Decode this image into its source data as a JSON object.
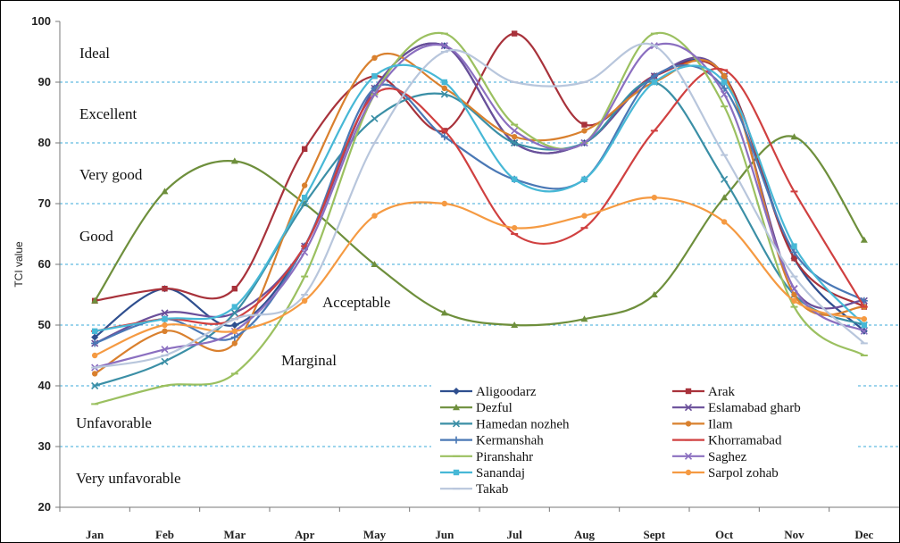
{
  "chart_data": {
    "type": "line",
    "ylabel": "TCI value",
    "xlabel": "",
    "ylim": [
      20,
      100
    ],
    "yticks": [
      20,
      30,
      40,
      50,
      60,
      70,
      80,
      90,
      100
    ],
    "categories": [
      "Jan",
      "Feb",
      "Mar",
      "Apr",
      "May",
      "Jun",
      "Jul",
      "Aug",
      "Sept",
      "Oct",
      "Nov",
      "Dec"
    ],
    "grid": "dashed horizontal at 30, 40, 50, 60, 70, 80, 90",
    "legend_placement": "bottom-right",
    "bands": [
      {
        "label": "Ideal",
        "value": 95
      },
      {
        "label": "Excellent",
        "value": 85
      },
      {
        "label": "Very good",
        "value": 75
      },
      {
        "label": "Good",
        "value": 65
      },
      {
        "label": "Acceptable",
        "value": 55
      },
      {
        "label": "Marginal",
        "value": 45
      },
      {
        "label": "Unfavorable",
        "value": 35
      },
      {
        "label": "Very unfavorable",
        "value": 25
      }
    ],
    "series": [
      {
        "name": "Aligoodarz",
        "color": "#2f4f8f",
        "marker": "diamond",
        "values": [
          48,
          56,
          50,
          63,
          89,
          96,
          80,
          80,
          91,
          91,
          61,
          49
        ]
      },
      {
        "name": "Arak",
        "color": "#a8323b",
        "marker": "square",
        "values": [
          54,
          56,
          56,
          79,
          91,
          82,
          98,
          83,
          91,
          91,
          61,
          53
        ]
      },
      {
        "name": "Dezful",
        "color": "#6e8f3c",
        "marker": "triangle",
        "values": [
          54,
          72,
          77,
          70,
          60,
          52,
          50,
          51,
          55,
          71,
          81,
          64
        ]
      },
      {
        "name": "Eslamabad gharb",
        "color": "#6a4f9a",
        "marker": "cross",
        "values": [
          47,
          52,
          52,
          63,
          89,
          96,
          80,
          80,
          91,
          91,
          56,
          54
        ]
      },
      {
        "name": "Hamedan nozheh",
        "color": "#3b8fa6",
        "marker": "cross",
        "values": [
          40,
          44,
          52,
          70,
          84,
          88,
          80,
          80,
          90,
          74,
          55,
          50
        ]
      },
      {
        "name": "Ilam",
        "color": "#d9802e",
        "marker": "circle",
        "values": [
          42,
          49,
          47,
          73,
          94,
          89,
          81,
          82,
          90,
          91,
          55,
          53
        ]
      },
      {
        "name": "Kermanshah",
        "color": "#4a78b5",
        "marker": "plus",
        "values": [
          47,
          51,
          48,
          63,
          89,
          81,
          74,
          74,
          91,
          89,
          62,
          54
        ]
      },
      {
        "name": "Khorramabad",
        "color": "#d04040",
        "marker": "dash",
        "values": [
          49,
          51,
          51,
          63,
          88,
          82,
          65,
          66,
          82,
          92,
          72,
          53
        ]
      },
      {
        "name": "Piranshahr",
        "color": "#9bc060",
        "marker": "dash",
        "values": [
          37,
          40,
          42,
          58,
          88,
          98,
          83,
          80,
          98,
          86,
          53,
          45
        ]
      },
      {
        "name": "Saghez",
        "color": "#8b6fc0",
        "marker": "cross",
        "values": [
          43,
          46,
          49,
          62,
          88,
          96,
          82,
          80,
          96,
          88,
          56,
          49
        ]
      },
      {
        "name": "Sanandaj",
        "color": "#47b8d6",
        "marker": "square",
        "values": [
          49,
          51,
          53,
          71,
          91,
          90,
          74,
          74,
          90,
          90,
          63,
          50
        ]
      },
      {
        "name": "Sarpol zohab",
        "color": "#f59a42",
        "marker": "circle",
        "values": [
          45,
          50,
          49,
          54,
          68,
          70,
          66,
          68,
          71,
          67,
          54,
          51
        ]
      },
      {
        "name": "Takab",
        "color": "#b8c6dc",
        "marker": "dash",
        "values": [
          43,
          45,
          51,
          55,
          80,
          95,
          90,
          90,
          96,
          78,
          58,
          47
        ]
      }
    ]
  }
}
